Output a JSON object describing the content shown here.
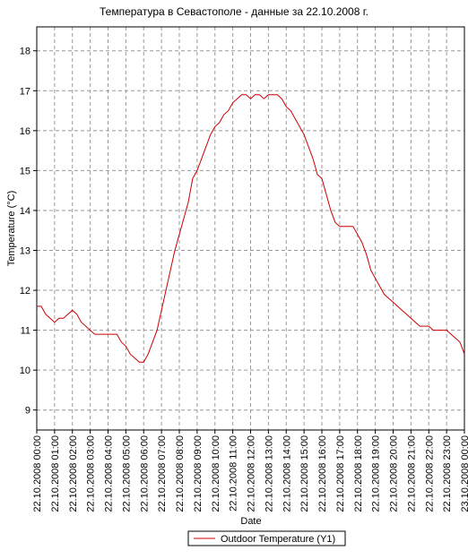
{
  "chart_data": {
    "type": "line",
    "title": "Температура в Севастополе - данные за 22.10.2008 г.",
    "x_label": "Date",
    "y_label": "Temperature (°C)",
    "xlim": [
      0,
      24
    ],
    "ylim": [
      8.5,
      18.6
    ],
    "yticks": [
      9,
      10,
      11,
      12,
      13,
      14,
      15,
      16,
      17,
      18
    ],
    "xticks": [
      {
        "value": 0,
        "label": "22.10.2008 00:00"
      },
      {
        "value": 1,
        "label": "22.10.2008 01:00"
      },
      {
        "value": 2,
        "label": "22.10.2008 02:00"
      },
      {
        "value": 3,
        "label": "22.10.2008 03:00"
      },
      {
        "value": 4,
        "label": "22.10.2008 04:00"
      },
      {
        "value": 5,
        "label": "22.10.2008 05:00"
      },
      {
        "value": 6,
        "label": "22.10.2008 06:00"
      },
      {
        "value": 7,
        "label": "22.10.2008 07:00"
      },
      {
        "value": 8,
        "label": "22.10.2008 08:00"
      },
      {
        "value": 9,
        "label": "22.10.2008 09:00"
      },
      {
        "value": 10,
        "label": "22.10.2008 10:00"
      },
      {
        "value": 11,
        "label": "22.10.2008 11:00"
      },
      {
        "value": 12,
        "label": "22.10.2008 12:00"
      },
      {
        "value": 13,
        "label": "22.10.2008 13:00"
      },
      {
        "value": 14,
        "label": "22.10.2008 14:00"
      },
      {
        "value": 15,
        "label": "22.10.2008 15:00"
      },
      {
        "value": 16,
        "label": "22.10.2008 16:00"
      },
      {
        "value": 17,
        "label": "22.10.2008 17:00"
      },
      {
        "value": 18,
        "label": "22.10.2008 18:00"
      },
      {
        "value": 19,
        "label": "22.10.2008 19:00"
      },
      {
        "value": 20,
        "label": "22.10.2008 20:00"
      },
      {
        "value": 21,
        "label": "22.10.2008 21:00"
      },
      {
        "value": 22,
        "label": "22.10.2008 22:00"
      },
      {
        "value": 23,
        "label": "22.10.2008 23:00"
      },
      {
        "value": 24,
        "label": "23.10.2008 00:00"
      }
    ],
    "grid": true,
    "x": [
      0,
      0.25,
      0.5,
      0.75,
      1,
      1.25,
      1.5,
      1.75,
      2,
      2.25,
      2.5,
      2.75,
      3,
      3.25,
      3.5,
      3.75,
      4,
      4.25,
      4.5,
      4.75,
      5,
      5.25,
      5.5,
      5.75,
      6,
      6.25,
      6.5,
      6.75,
      7,
      7.25,
      7.5,
      7.75,
      8,
      8.25,
      8.5,
      8.75,
      9,
      9.25,
      9.5,
      9.75,
      10,
      10.25,
      10.5,
      10.75,
      11,
      11.25,
      11.5,
      11.75,
      12,
      12.25,
      12.5,
      12.75,
      13,
      13.25,
      13.5,
      13.75,
      14,
      14.25,
      14.5,
      14.75,
      15,
      15.25,
      15.5,
      15.75,
      16,
      16.25,
      16.5,
      16.75,
      17,
      17.25,
      17.5,
      17.75,
      18,
      18.25,
      18.5,
      18.75,
      19,
      19.25,
      19.5,
      19.75,
      20,
      20.25,
      20.5,
      20.75,
      21,
      21.25,
      21.5,
      21.75,
      22,
      22.25,
      22.5,
      22.75,
      23,
      23.25,
      23.5,
      23.75,
      24
    ],
    "series": [
      {
        "name": "Outdoor Temperature (Y1)",
        "color": "#cc0000",
        "values": [
          11.6,
          11.6,
          11.4,
          11.3,
          11.2,
          11.3,
          11.3,
          11.4,
          11.5,
          11.4,
          11.2,
          11.1,
          11.0,
          10.9,
          10.9,
          10.9,
          10.9,
          10.9,
          10.9,
          10.7,
          10.6,
          10.4,
          10.3,
          10.2,
          10.2,
          10.4,
          10.7,
          11.0,
          11.5,
          12.0,
          12.5,
          13.0,
          13.4,
          13.8,
          14.2,
          14.8,
          15.0,
          15.3,
          15.6,
          15.9,
          16.1,
          16.2,
          16.4,
          16.5,
          16.7,
          16.8,
          16.9,
          16.9,
          16.8,
          16.9,
          16.9,
          16.8,
          16.9,
          16.9,
          16.9,
          16.8,
          16.6,
          16.5,
          16.3,
          16.1,
          15.9,
          15.6,
          15.3,
          14.9,
          14.8,
          14.4,
          14.0,
          13.7,
          13.6,
          13.6,
          13.6,
          13.6,
          13.4,
          13.2,
          12.9,
          12.5,
          12.3,
          12.1,
          11.9,
          11.8,
          11.7,
          11.6,
          11.5,
          11.4,
          11.3,
          11.2,
          11.1,
          11.1,
          11.1,
          11.0,
          11.0,
          11.0,
          11.0,
          10.9,
          10.8,
          10.7,
          10.4
        ]
      }
    ]
  }
}
